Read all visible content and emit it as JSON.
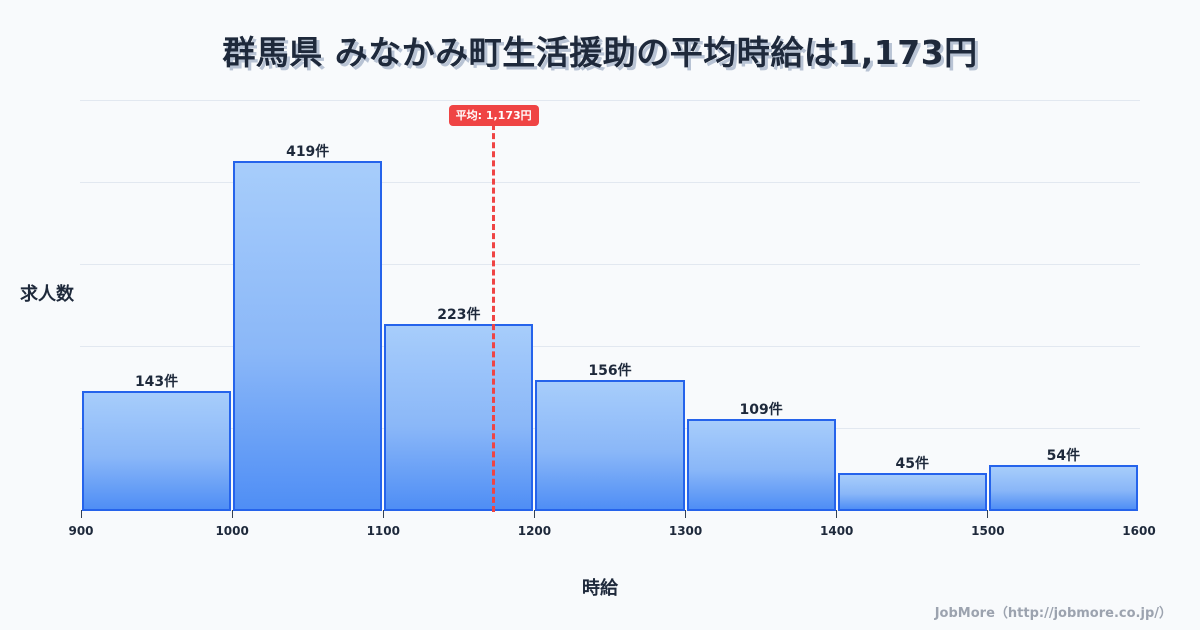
{
  "title": "群馬県 みなかみ町生活援助の平均時給は1,173円",
  "axis": {
    "ylabel": "求人数",
    "xlabel": "時給"
  },
  "footer": "JobMore（http://jobmore.co.jp/）",
  "average": {
    "label": "平均: 1,173円",
    "value": 1173
  },
  "colors": {
    "bar_border": "#2563eb",
    "bar_top": "#a7cdfb",
    "bar_bottom": "#4f8ef5",
    "average": "#ef4444",
    "text": "#1e293b",
    "background": "#f8fafc"
  },
  "chart_data": {
    "type": "bar",
    "title": "群馬県 みなかみ町生活援助の平均時給は1,173円",
    "xlabel": "時給",
    "ylabel": "求人数",
    "bins": [
      [
        900,
        1000
      ],
      [
        1000,
        1100
      ],
      [
        1100,
        1200
      ],
      [
        1200,
        1300
      ],
      [
        1300,
        1400
      ],
      [
        1400,
        1500
      ],
      [
        1500,
        1600
      ]
    ],
    "categories": [
      "900-1000",
      "1000-1100",
      "1100-1200",
      "1200-1300",
      "1300-1400",
      "1400-1500",
      "1500-1600"
    ],
    "values": [
      143,
      419,
      223,
      156,
      109,
      45,
      54
    ],
    "value_labels": [
      "143件",
      "419件",
      "223件",
      "156件",
      "109件",
      "45件",
      "54件"
    ],
    "x_ticks": [
      "900",
      "1000",
      "1100",
      "1200",
      "1300",
      "1400",
      "1500",
      "1600"
    ],
    "xlim": [
      900,
      1600
    ],
    "ylim": [
      0,
      492
    ],
    "grid": true,
    "annotations": [
      {
        "type": "vline",
        "x": 1173,
        "label": "平均: 1,173円",
        "style": "dashed",
        "color": "#ef4444"
      }
    ]
  }
}
